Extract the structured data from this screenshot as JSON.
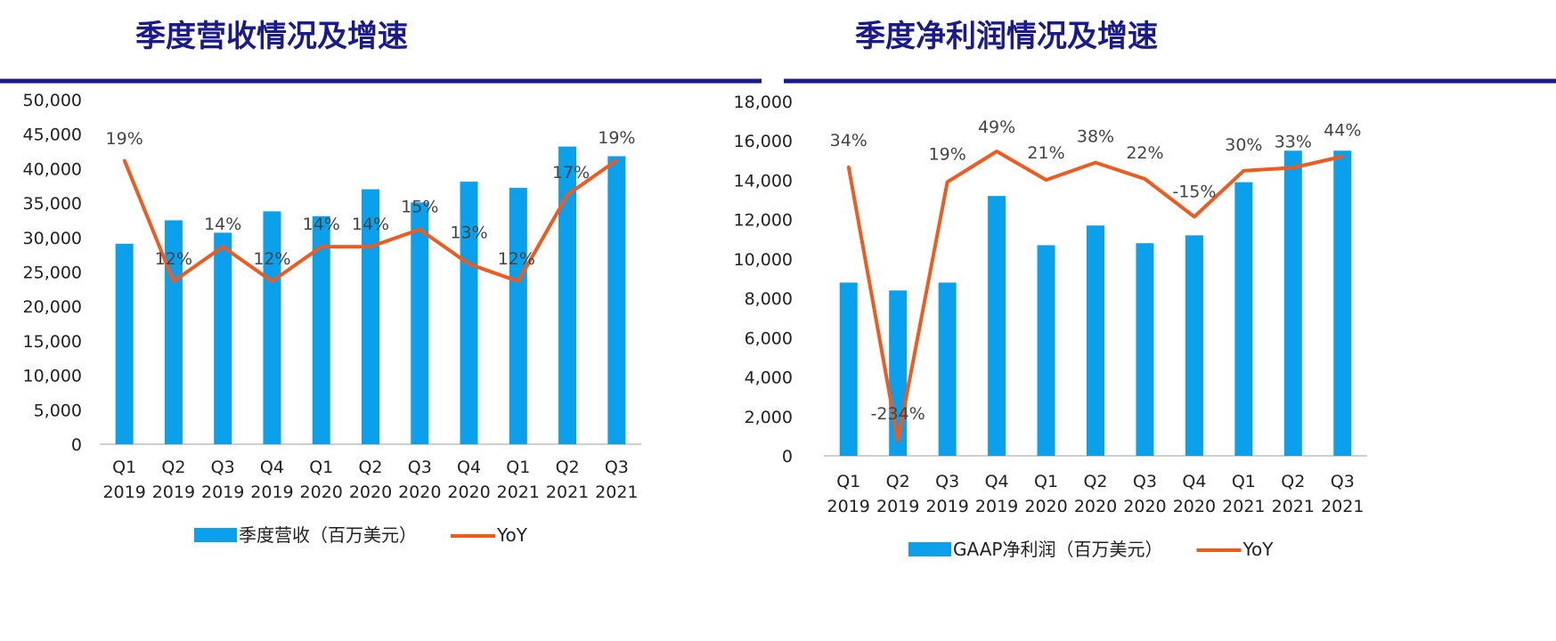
{
  "colors": {
    "bar": "#0aa0ec",
    "line": "#f05a1e",
    "title": "#1a1a8c",
    "rule": "#1a1a8c",
    "axis": "#bfbfbf"
  },
  "chart_data": [
    {
      "type": "bar",
      "title": "季度营收情况及增速",
      "categories": [
        [
          "Q1",
          "2019"
        ],
        [
          "Q2",
          "2019"
        ],
        [
          "Q3",
          "2019"
        ],
        [
          "Q4",
          "2019"
        ],
        [
          "Q1",
          "2020"
        ],
        [
          "Q2",
          "2020"
        ],
        [
          "Q3",
          "2020"
        ],
        [
          "Q4",
          "2020"
        ],
        [
          "Q1",
          "2021"
        ],
        [
          "Q2",
          "2021"
        ],
        [
          "Q3",
          "2021"
        ]
      ],
      "ylim": [
        0,
        50000
      ],
      "yticks": [
        0,
        5000,
        10000,
        15000,
        20000,
        25000,
        30000,
        35000,
        40000,
        45000,
        50000
      ],
      "ytick_labels": [
        "0",
        "5,000",
        "10,000",
        "15,000",
        "20,000",
        "25,000",
        "30,000",
        "35,000",
        "40,000",
        "45,000",
        "50,000"
      ],
      "legend_placement": "bottom",
      "series": [
        {
          "name": "季度营收（百万美元）",
          "type": "bar",
          "values": [
            29100,
            32500,
            30700,
            33800,
            33100,
            37000,
            35100,
            38100,
            37200,
            43200,
            41800
          ]
        },
        {
          "name": "YoY",
          "type": "line",
          "values": [
            19,
            12,
            14,
            12,
            14,
            14,
            15,
            13,
            12,
            17,
            19
          ],
          "labels": [
            "19%",
            "12%",
            "14%",
            "12%",
            "14%",
            "14%",
            "15%",
            "13%",
            "12%",
            "17%",
            "19%"
          ]
        }
      ]
    },
    {
      "type": "bar",
      "title": "季度净利润情况及增速",
      "categories": [
        [
          "Q1",
          "2019"
        ],
        [
          "Q2",
          "2019"
        ],
        [
          "Q3",
          "2019"
        ],
        [
          "Q4",
          "2019"
        ],
        [
          "Q1",
          "2020"
        ],
        [
          "Q2",
          "2020"
        ],
        [
          "Q3",
          "2020"
        ],
        [
          "Q4",
          "2020"
        ],
        [
          "Q1",
          "2021"
        ],
        [
          "Q2",
          "2021"
        ],
        [
          "Q3",
          "2021"
        ]
      ],
      "ylim": [
        0,
        18000
      ],
      "yticks": [
        0,
        2000,
        4000,
        6000,
        8000,
        10000,
        12000,
        14000,
        16000,
        18000
      ],
      "ytick_labels": [
        "0",
        "2,000",
        "4,000",
        "6,000",
        "8,000",
        "10,000",
        "12,000",
        "14,000",
        "16,000",
        "18,000"
      ],
      "legend_placement": "bottom",
      "series": [
        {
          "name": "GAAP净利润（百万美元）",
          "type": "bar",
          "values": [
            8800,
            8400,
            8800,
            13200,
            10700,
            11700,
            10800,
            11200,
            13900,
            15500,
            15500
          ]
        },
        {
          "name": "YoY",
          "type": "line",
          "values": [
            34,
            -234,
            19,
            49,
            21,
            38,
            22,
            -15,
            30,
            33,
            44
          ],
          "labels": [
            "34%",
            "-234%",
            "19%",
            "49%",
            "21%",
            "38%",
            "22%",
            "-15%",
            "30%",
            "33%",
            "44%"
          ]
        }
      ]
    }
  ]
}
